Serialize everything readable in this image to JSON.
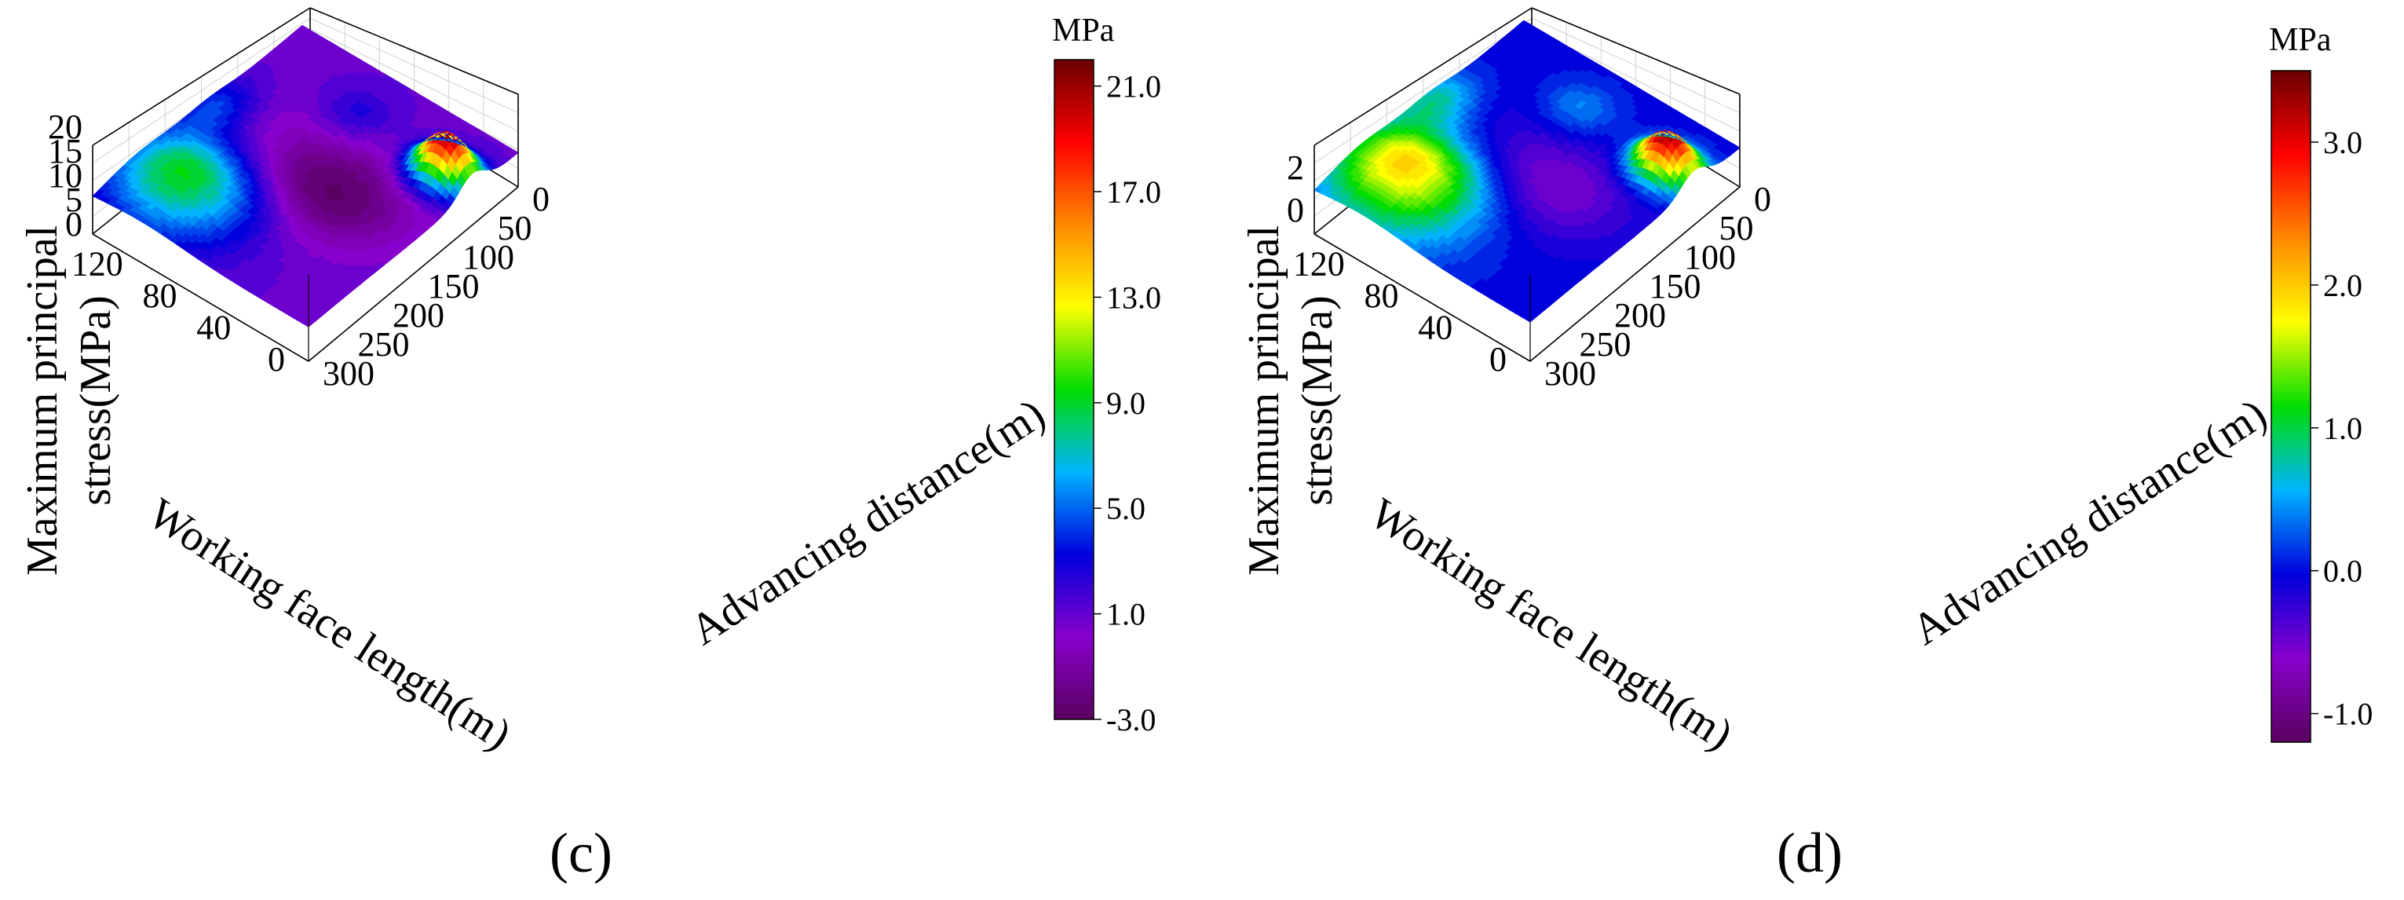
{
  "chart_data": [
    {
      "type": "surface3d",
      "panel_label": "(c)",
      "zlabel_line1": "Maximum principal",
      "zlabel_line2": "stress(MPa)",
      "xlabel": "Working face length(m)",
      "ylabel": "Advancing distance(m)",
      "x_ticks": [
        "0",
        "40",
        "80",
        "120"
      ],
      "y_ticks": [
        "0",
        "50",
        "100",
        "150",
        "200",
        "250",
        "300"
      ],
      "z_ticks": [
        "0",
        "5",
        "10",
        "15",
        "20"
      ],
      "xlim": [
        0,
        150
      ],
      "ylim": [
        0,
        300
      ],
      "zlim": [
        -3,
        22
      ],
      "colorbar": {
        "unit": "MPa",
        "ticks": [
          "21.0",
          "17.0",
          "13.0",
          "9.0",
          "5.0",
          "1.0",
          "-3.0"
        ],
        "range": [
          -3.0,
          22.0
        ]
      },
      "features": {
        "min_value": -3.0,
        "max_value": 22.0,
        "upper_left_peak": 9.5,
        "goaf_low": -3.0,
        "front_ridge": 22.0,
        "far_plateau": 1.0
      },
      "colors": [
        "#5a0060",
        "#8800cc",
        "#0000dd",
        "#00b4ff",
        "#00dd00",
        "#ffff00",
        "#ff8800",
        "#ff0000",
        "#6a0000"
      ]
    },
    {
      "type": "surface3d",
      "panel_label": "(d)",
      "zlabel_line1": "Maximum principal",
      "zlabel_line2": "stress(MPa)",
      "xlabel": "Working face length(m)",
      "ylabel": "Advancing distance(m)",
      "x_ticks": [
        "0",
        "40",
        "80",
        "120"
      ],
      "y_ticks": [
        "0",
        "50",
        "100",
        "150",
        "200",
        "250",
        "300"
      ],
      "z_ticks": [
        "0",
        "2"
      ],
      "xlim": [
        0,
        150
      ],
      "ylim": [
        0,
        300
      ],
      "zlim": [
        -1.2,
        3.5
      ],
      "colorbar": {
        "unit": "MPa",
        "ticks": [
          "3.0",
          "2.0",
          "1.0",
          "0.0",
          "-1.0"
        ],
        "range": [
          -1.2,
          3.5
        ]
      },
      "features": {
        "min_value": -0.6,
        "max_value": 3.5,
        "upper_left_peak": 2.0,
        "goaf_low": -0.6,
        "front_ridge": 3.5,
        "far_plateau": 0.0
      },
      "colors": [
        "#5a0060",
        "#8800cc",
        "#0000dd",
        "#00b4ff",
        "#00dd00",
        "#ffff00",
        "#ff8800",
        "#ff0000",
        "#6a0000"
      ]
    }
  ]
}
